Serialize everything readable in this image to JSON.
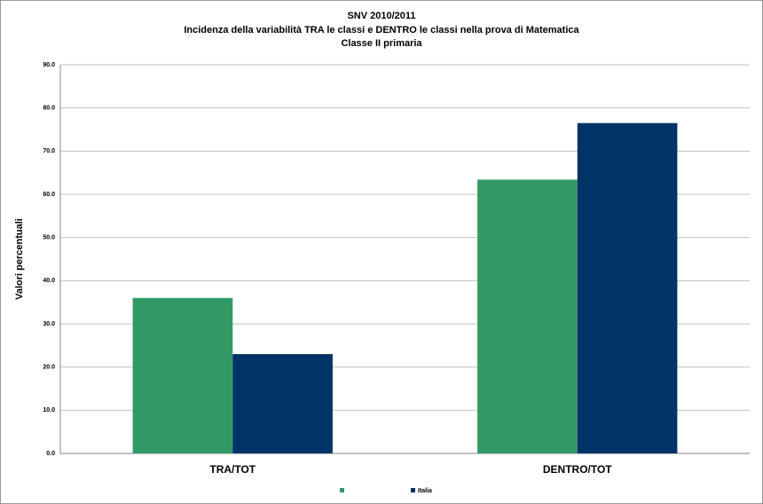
{
  "chart_data": {
    "type": "bar",
    "title": "SNV 2010/2011",
    "subtitle": [
      "Incidenza della variabilità TRA le classi e DENTRO le classi nella prova di Matematica",
      "Classe II primaria"
    ],
    "y_label": "Valori percentuali",
    "categories": [
      "TRA/TOT",
      "DENTRO/TOT"
    ],
    "series": [
      {
        "color": "#339966",
        "values": [
          36,
          63.4
        ]
      },
      {
        "name": "Italia",
        "color": "#003366",
        "values": [
          23,
          76.5
        ]
      }
    ],
    "ylim": [
      0,
      90
    ],
    "yticks": [
      {
        "value": 0,
        "label": "0.0"
      },
      {
        "value": 10,
        "label": "10.0"
      },
      {
        "value": 20,
        "label": "20.0"
      },
      {
        "value": 30,
        "label": "30.0"
      },
      {
        "value": 40,
        "label": "40.0"
      },
      {
        "value": 50,
        "label": "50.0"
      },
      {
        "value": 60,
        "label": "60.0"
      },
      {
        "value": 70,
        "label": "70.0"
      },
      {
        "value": 80,
        "label": "80.0"
      },
      {
        "value": 90,
        "label": "90.0"
      }
    ],
    "grid": true
  }
}
